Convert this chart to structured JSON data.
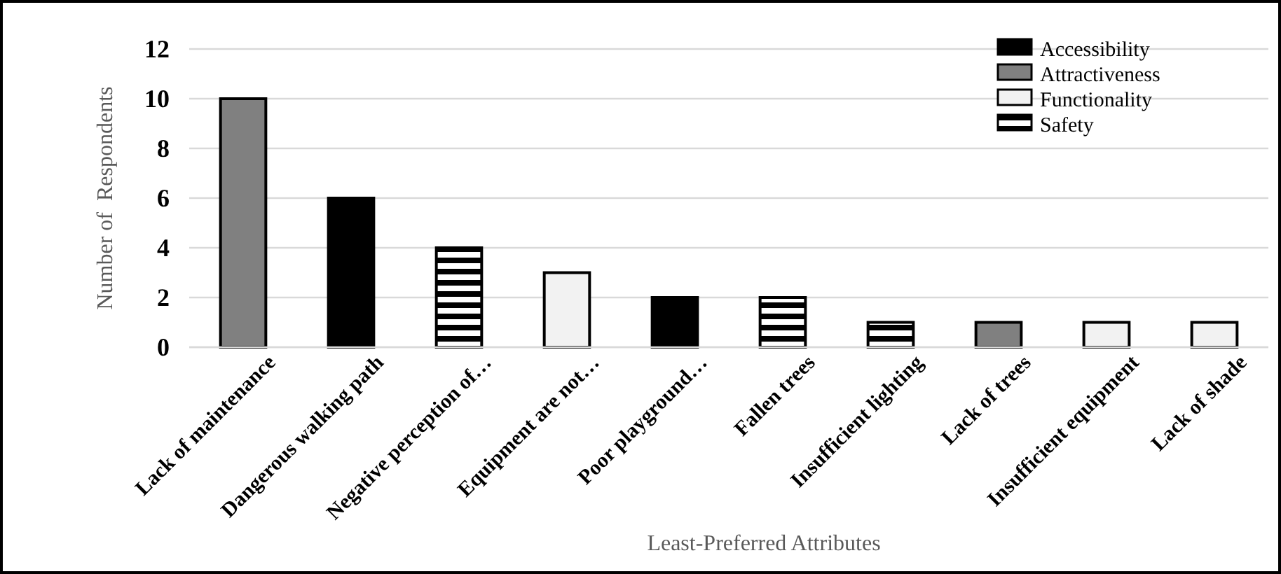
{
  "chart_data": {
    "type": "bar",
    "xlabel": "Least-Preferred Attributes",
    "ylabel": "Number of  Respondents",
    "categories": [
      "Lack of maintenance",
      "Dangerous walking path",
      "Negative perception of…",
      "Equipment are not…",
      "Poor playground…",
      "Fallen trees",
      "Insufficient lighting",
      "Lack of trees",
      "Insufficient equipment",
      "Lack of shade"
    ],
    "series": [
      {
        "name": "Accessibility",
        "color": "#000000",
        "values": [
          null,
          6,
          null,
          null,
          2,
          null,
          null,
          null,
          null,
          null
        ]
      },
      {
        "name": "Attractiveness",
        "color": "#808080",
        "values": [
          10,
          null,
          null,
          null,
          null,
          null,
          null,
          1,
          null,
          null
        ]
      },
      {
        "name": "Functionality",
        "color": "#f2f2f2",
        "values": [
          null,
          null,
          null,
          3,
          null,
          null,
          null,
          null,
          1,
          1
        ]
      },
      {
        "name": "Safety",
        "color": "#000000",
        "values": [
          null,
          null,
          4,
          null,
          null,
          2,
          1,
          null,
          null,
          null
        ]
      }
    ],
    "ylim": [
      0,
      12
    ],
    "yticks": [
      0,
      2,
      4,
      6,
      8,
      10,
      12
    ],
    "grid": "y",
    "legend": "top right"
  }
}
